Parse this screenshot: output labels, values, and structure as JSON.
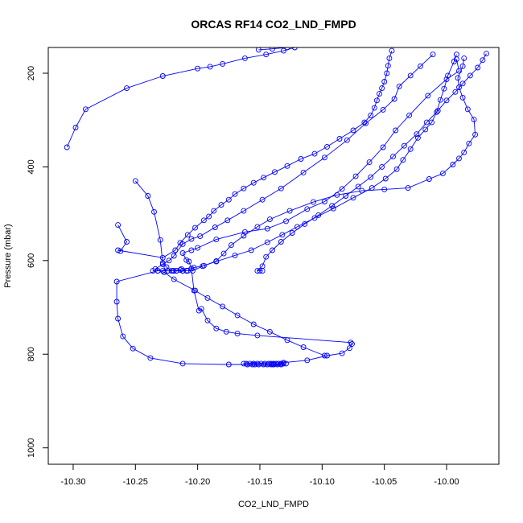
{
  "chart_data": {
    "type": "line",
    "title": "ORCAS RF14 CO2_LND_FMPD",
    "xlabel": "CO2_LND_FMPD",
    "ylabel": "Pressure (mbar)",
    "xlim": [
      -10.32,
      -9.958
    ],
    "ylim": [
      1035,
      145
    ],
    "y_reversed": true,
    "x_ticks": [
      -10.3,
      -10.25,
      -10.2,
      -10.15,
      -10.1,
      -10.05,
      -10.0
    ],
    "x_tick_labels": [
      "-10.30",
      "-10.25",
      "-10.20",
      "-10.15",
      "-10.10",
      "-10.05",
      "-10.00"
    ],
    "y_ticks": [
      200,
      400,
      600,
      800,
      1000
    ],
    "y_tick_labels": [
      "200",
      "400",
      "600",
      "800",
      "1000"
    ],
    "series": [
      {
        "color": "#0000ff",
        "marker": "open-circle",
        "points": [
          [
            -10.139,
            822
          ],
          [
            -10.131,
            818
          ],
          [
            -10.112,
            813
          ],
          [
            -10.096,
            803
          ],
          [
            -10.084,
            798
          ],
          [
            -10.078,
            787
          ],
          [
            -10.076,
            778
          ],
          [
            -10.077,
            775
          ],
          [
            -10.152,
            760
          ],
          [
            -10.168,
            756
          ],
          [
            -10.177,
            752
          ],
          [
            -10.185,
            745
          ],
          [
            -10.192,
            728
          ],
          [
            -10.197,
            703
          ],
          [
            -10.199,
            707
          ],
          [
            -10.203,
            664
          ],
          [
            -10.205,
            617
          ],
          [
            -10.207,
            602
          ],
          [
            -10.209,
            599
          ],
          [
            -10.212,
            584
          ],
          [
            -10.205,
            578
          ],
          [
            -10.2,
            573
          ],
          [
            -10.185,
            555
          ],
          [
            -10.162,
            539
          ],
          [
            -10.144,
            532
          ],
          [
            -10.129,
            516
          ],
          [
            -10.112,
            490
          ],
          [
            -10.098,
            474
          ],
          [
            -10.084,
            447
          ],
          [
            -10.073,
            420
          ],
          [
            -10.062,
            390
          ],
          [
            -10.051,
            358
          ],
          [
            -10.041,
            322
          ],
          [
            -10.03,
            290
          ],
          [
            -10.015,
            248
          ],
          [
            -10.0,
            213
          ],
          [
            -9.99,
            195
          ],
          [
            -9.992,
            170
          ]
        ]
      },
      {
        "color": "#0000ff",
        "marker": "open-circle",
        "points": [
          [
            -10.098,
            803
          ],
          [
            -10.115,
            785
          ],
          [
            -10.128,
            770
          ],
          [
            -10.142,
            752
          ],
          [
            -10.155,
            736
          ],
          [
            -10.168,
            717
          ],
          [
            -10.18,
            698
          ],
          [
            -10.192,
            680
          ],
          [
            -10.202,
            664
          ],
          [
            -10.219,
            640
          ],
          [
            -10.227,
            625
          ],
          [
            -10.234,
            618
          ],
          [
            -10.228,
            608
          ],
          [
            -10.223,
            600
          ],
          [
            -10.219,
            590
          ],
          [
            -10.212,
            565
          ],
          [
            -10.205,
            554
          ],
          [
            -10.198,
            548
          ],
          [
            -10.186,
            529
          ],
          [
            -10.176,
            514
          ],
          [
            -10.163,
            494
          ],
          [
            -10.148,
            470
          ],
          [
            -10.133,
            446
          ],
          [
            -10.115,
            412
          ],
          [
            -10.098,
            380
          ],
          [
            -10.08,
            343
          ],
          [
            -10.065,
            307
          ],
          [
            -10.051,
            278
          ],
          [
            -10.042,
            255
          ],
          [
            -10.038,
            228
          ],
          [
            -10.029,
            205
          ],
          [
            -10.021,
            185
          ],
          [
            -10.011,
            160
          ]
        ]
      },
      {
        "color": "#0000ff",
        "marker": "open-circle",
        "points": [
          [
            -10.154,
            822
          ],
          [
            -10.175,
            822
          ],
          [
            -10.212,
            820
          ],
          [
            -10.238,
            808
          ],
          [
            -10.252,
            788
          ],
          [
            -10.26,
            762
          ],
          [
            -10.264,
            724
          ],
          [
            -10.265,
            688
          ],
          [
            -10.265,
            645
          ],
          [
            -10.232,
            622
          ],
          [
            -10.224,
            622
          ],
          [
            -10.22,
            622
          ],
          [
            -10.217,
            622
          ],
          [
            -10.212,
            622
          ],
          [
            -10.209,
            622
          ],
          [
            -10.236,
            622
          ],
          [
            -10.232,
            622
          ],
          [
            -10.228,
            622
          ],
          [
            -10.224,
            622
          ],
          [
            -10.219,
            622
          ],
          [
            -10.214,
            620
          ],
          [
            -10.213,
            618
          ],
          [
            -10.203,
            615
          ],
          [
            -10.195,
            611
          ],
          [
            -10.185,
            601
          ],
          [
            -10.179,
            585
          ],
          [
            -10.173,
            567
          ],
          [
            -10.163,
            547
          ],
          [
            -10.152,
            528
          ],
          [
            -10.142,
            512
          ],
          [
            -10.126,
            494
          ],
          [
            -10.107,
            475
          ],
          [
            -10.088,
            460
          ],
          [
            -10.068,
            451
          ],
          [
            -10.05,
            448
          ],
          [
            -10.031,
            445
          ],
          [
            -10.014,
            426
          ],
          [
            -10.003,
            414
          ],
          [
            -9.995,
            395
          ],
          [
            -9.99,
            382
          ],
          [
            -9.986,
            369
          ],
          [
            -9.982,
            350
          ],
          [
            -9.977,
            331
          ],
          [
            -9.978,
            299
          ],
          [
            -9.983,
            277
          ],
          [
            -9.987,
            252
          ],
          [
            -9.99,
            230
          ],
          [
            -9.991,
            210
          ],
          [
            -9.987,
            185
          ],
          [
            -9.986,
            168
          ]
        ]
      },
      {
        "color": "#0000ff",
        "marker": "open-circle",
        "points": [
          [
            -10.264,
            524
          ],
          [
            -10.257,
            560
          ],
          [
            -10.262,
            580
          ],
          [
            -10.264,
            578
          ],
          [
            -10.228,
            594
          ],
          [
            -10.218,
            578
          ],
          [
            -10.214,
            562
          ],
          [
            -10.208,
            545
          ],
          [
            -10.202,
            530
          ],
          [
            -10.195,
            514
          ],
          [
            -10.191,
            506
          ],
          [
            -10.187,
            494
          ],
          [
            -10.181,
            481
          ],
          [
            -10.175,
            470
          ],
          [
            -10.17,
            458
          ],
          [
            -10.163,
            446
          ],
          [
            -10.155,
            434
          ],
          [
            -10.147,
            423
          ],
          [
            -10.138,
            411
          ],
          [
            -10.128,
            398
          ],
          [
            -10.117,
            383
          ],
          [
            -10.106,
            372
          ],
          [
            -10.096,
            357
          ],
          [
            -10.086,
            340
          ],
          [
            -10.075,
            322
          ],
          [
            -10.066,
            305
          ],
          [
            -10.061,
            290
          ],
          [
            -10.058,
            274
          ],
          [
            -10.056,
            258
          ],
          [
            -10.054,
            244
          ],
          [
            -10.052,
            232
          ],
          [
            -10.05,
            218
          ],
          [
            -10.048,
            200
          ],
          [
            -10.047,
            184
          ],
          [
            -10.046,
            168
          ],
          [
            -10.044,
            152
          ]
        ]
      },
      {
        "color": "#0000ff",
        "marker": "open-circle",
        "points": [
          [
            -10.305,
            358
          ],
          [
            -10.298,
            316
          ],
          [
            -10.29,
            277
          ],
          [
            -10.257,
            232
          ],
          [
            -10.228,
            206
          ],
          [
            -10.2,
            190
          ],
          [
            -10.19,
            186
          ],
          [
            -10.18,
            180
          ],
          [
            -10.162,
            168
          ],
          [
            -10.145,
            160
          ],
          [
            -10.131,
            152
          ],
          [
            -10.122,
            145
          ],
          [
            -10.128,
            145
          ],
          [
            -10.14,
            148
          ],
          [
            -10.151,
            150
          ]
        ]
      },
      {
        "color": "#0000ff",
        "marker": "open-circle",
        "points": [
          [
            -10.25,
            430
          ],
          [
            -10.24,
            462
          ],
          [
            -10.235,
            496
          ],
          [
            -10.23,
            556
          ],
          [
            -10.228,
            605
          ],
          [
            -10.225,
            614
          ],
          [
            -10.221,
            622
          ],
          [
            -10.217,
            622
          ],
          [
            -10.212,
            622
          ],
          [
            -10.208,
            622
          ],
          [
            -10.204,
            622
          ],
          [
            -10.196,
            612
          ],
          [
            -10.185,
            602
          ],
          [
            -10.17,
            589
          ],
          [
            -10.157,
            578
          ],
          [
            -10.144,
            561
          ],
          [
            -10.132,
            545
          ],
          [
            -10.12,
            528
          ],
          [
            -10.106,
            509
          ],
          [
            -10.091,
            489
          ],
          [
            -10.075,
            466
          ],
          [
            -10.06,
            445
          ],
          [
            -10.049,
            425
          ],
          [
            -10.04,
            405
          ],
          [
            -10.035,
            385
          ],
          [
            -10.029,
            362
          ],
          [
            -10.023,
            338
          ],
          [
            -10.017,
            320
          ],
          [
            -10.012,
            305
          ],
          [
            -10.008,
            283
          ],
          [
            -10.005,
            257
          ],
          [
            -10.002,
            233
          ],
          [
            -9.999,
            205
          ],
          [
            -9.994,
            175
          ],
          [
            -9.992,
            160
          ]
        ]
      },
      {
        "color": "#0000ff",
        "marker": "open-circle",
        "points": [
          [
            -10.15,
            622
          ],
          [
            -10.148,
            622
          ],
          [
            -10.152,
            622
          ],
          [
            -10.148,
            612
          ],
          [
            -10.145,
            592
          ],
          [
            -10.14,
            578
          ],
          [
            -10.133,
            560
          ],
          [
            -10.124,
            541
          ],
          [
            -10.114,
            522
          ],
          [
            -10.103,
            503
          ],
          [
            -10.092,
            483
          ],
          [
            -10.081,
            462
          ],
          [
            -10.071,
            442
          ],
          [
            -10.061,
            422
          ],
          [
            -10.052,
            400
          ],
          [
            -10.043,
            378
          ],
          [
            -10.034,
            355
          ],
          [
            -10.024,
            330
          ],
          [
            -10.016,
            305
          ],
          [
            -10.007,
            280
          ],
          [
            -10.0,
            258
          ],
          [
            -9.993,
            240
          ],
          [
            -9.987,
            222
          ],
          [
            -9.981,
            205
          ],
          [
            -9.975,
            188
          ],
          [
            -9.971,
            172
          ],
          [
            -9.968,
            158
          ]
        ]
      },
      {
        "color": "#0000ff",
        "marker": "open-circle",
        "points": [
          [
            -10.163,
            820
          ],
          [
            -10.161,
            820
          ],
          [
            -10.158,
            820
          ],
          [
            -10.155,
            820
          ],
          [
            -10.152,
            820
          ],
          [
            -10.149,
            820
          ],
          [
            -10.146,
            820
          ],
          [
            -10.143,
            820
          ],
          [
            -10.141,
            820
          ],
          [
            -10.139,
            820
          ],
          [
            -10.137,
            820
          ],
          [
            -10.135,
            820
          ],
          [
            -10.133,
            820
          ],
          [
            -10.131,
            820
          ],
          [
            -10.129,
            820
          ],
          [
            -10.133,
            822
          ],
          [
            -10.136,
            822
          ],
          [
            -10.139,
            822
          ],
          [
            -10.141,
            822
          ],
          [
            -10.144,
            822
          ],
          [
            -10.147,
            822
          ],
          [
            -10.151,
            822
          ],
          [
            -10.156,
            822
          ],
          [
            -10.16,
            822
          ]
        ]
      }
    ]
  }
}
